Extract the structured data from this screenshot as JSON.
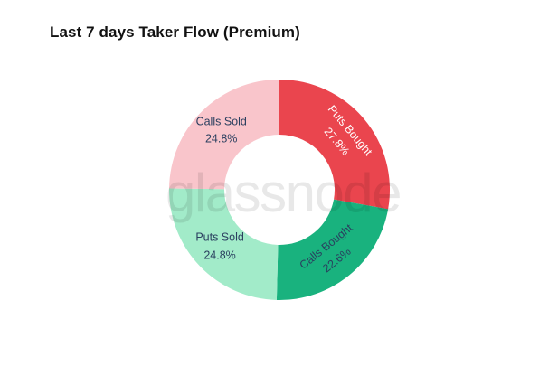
{
  "header": {
    "title": "Last 7 days Taker Flow (Premium)"
  },
  "watermark": {
    "text": "glassnode"
  },
  "chart_data": {
    "type": "pie",
    "subtype": "donut",
    "title": "Last 7 days Taker Flow (Premium)",
    "hole": 0.5,
    "direction": "clockwise",
    "start_angle_deg": 0,
    "legend": "none",
    "unit": "%",
    "categories": [
      "Puts Bought",
      "Calls Bought",
      "Puts Sold",
      "Calls Sold"
    ],
    "values": [
      27.8,
      22.6,
      24.8,
      24.8
    ],
    "slices": [
      {
        "label": "Puts Bought",
        "value": 27.8,
        "pct_label": "27.8%",
        "color": "#ea454e",
        "label_color": "#ffffff",
        "label_rotation_deg": 50
      },
      {
        "label": "Calls Bought",
        "value": 22.6,
        "pct_label": "22.6%",
        "color": "#19b27e",
        "label_color": "#2a3f5f",
        "label_rotation_deg": -39
      },
      {
        "label": "Puts Sold",
        "value": 24.8,
        "pct_label": "24.8%",
        "color": "#a2ebc9",
        "label_color": "#2a3f5f",
        "label_rotation_deg": 0
      },
      {
        "label": "Calls Sold",
        "value": 24.8,
        "pct_label": "24.8%",
        "color": "#f9c5cb",
        "label_color": "#2a3f5f",
        "label_rotation_deg": 0
      }
    ]
  }
}
